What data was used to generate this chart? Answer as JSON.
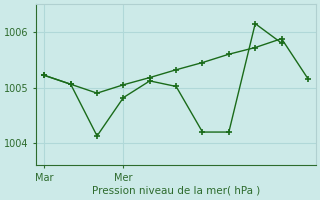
{
  "title": "Pression niveau de la mer( hPa )",
  "xtick_labels": [
    "Mar",
    "Mer"
  ],
  "xtick_positions": [
    0,
    3
  ],
  "ylim": [
    1003.6,
    1006.5
  ],
  "yticks": [
    1004,
    1005,
    1006
  ],
  "background_color": "#cceae8",
  "grid_color": "#b0d8d8",
  "line_color": "#1a6b1a",
  "line1_x": [
    0,
    1,
    2,
    3,
    4,
    5,
    6,
    7,
    8,
    9
  ],
  "line1_y": [
    1005.22,
    1005.06,
    1004.13,
    1004.82,
    1005.12,
    1005.02,
    1004.2,
    1004.2,
    1006.15,
    1005.8
  ],
  "line2_x": [
    0,
    1,
    2,
    3,
    4,
    5,
    6,
    7,
    8,
    9,
    10
  ],
  "line2_y": [
    1005.22,
    1005.06,
    1004.9,
    1005.05,
    1005.18,
    1005.32,
    1005.45,
    1005.6,
    1005.72,
    1005.88,
    1005.16
  ],
  "xlim": [
    -0.3,
    10.3
  ]
}
